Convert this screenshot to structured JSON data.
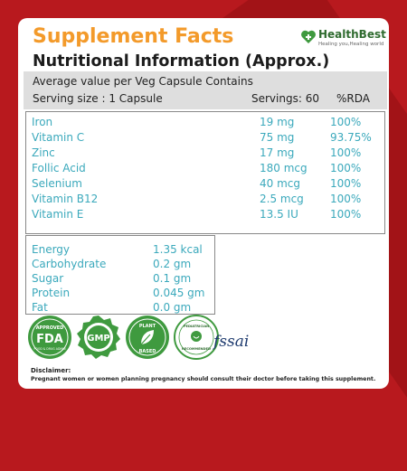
{
  "header": {
    "title": "Supplement Facts",
    "subtitle": "Nutritional Information (Approx.)"
  },
  "brand": {
    "name": "HealthBest",
    "tagline": "Healing you,Healing world"
  },
  "serving": {
    "line1": "Average value per Veg Capsule Contains",
    "serving_size": "Serving size : 1 Capsule",
    "servings": "Servings: 60",
    "rda_header": "%RDA"
  },
  "nutrients": [
    {
      "name": "Iron",
      "amount": "19 mg",
      "rda": "100%"
    },
    {
      "name": "Vitamin C",
      "amount": "75 mg",
      "rda": "93.75%"
    },
    {
      "name": "Zinc",
      "amount": "17 mg",
      "rda": "100%"
    },
    {
      "name": "Follic Acid",
      "amount": "180 mcg",
      "rda": "100%"
    },
    {
      "name": "Selenium",
      "amount": "40 mcg",
      "rda": "100%"
    },
    {
      "name": "Vitamin B12",
      "amount": "2.5 mcg",
      "rda": "100%"
    },
    {
      "name": "Vitamin E",
      "amount": "13.5 IU",
      "rda": "100%"
    }
  ],
  "energy": [
    {
      "name": "Energy",
      "amount": "1.35 kcal"
    },
    {
      "name": "Carbohydrate",
      "amount": "0.2 gm"
    },
    {
      "name": "Sugar",
      "amount": "0.1 gm"
    },
    {
      "name": "Protein",
      "amount": "0.045 gm"
    },
    {
      "name": "Fat",
      "amount": "0.0 gm"
    }
  ],
  "badges": {
    "fda": {
      "top": "APPROVED",
      "main": "FDA",
      "bottom": "FOOD & DRUG ADMIN"
    },
    "gmp": {
      "main": "GMP"
    },
    "plant": {
      "top": "PLANT",
      "bottom": "BASED"
    },
    "pediatric": {
      "top": "PEDIATRICIAN",
      "bottom": "RECOMMENDED"
    },
    "fssai": "fssai"
  },
  "disclaimer": {
    "title": "Disclaimer:",
    "text": "Pregnant women or women planning pregnancy should consult their doctor before taking this supplement."
  },
  "colors": {
    "background": "#b8191e",
    "title": "#f39a2a",
    "nutrient_text": "#3ba9bc",
    "badge_green": "#3f9a3f"
  }
}
